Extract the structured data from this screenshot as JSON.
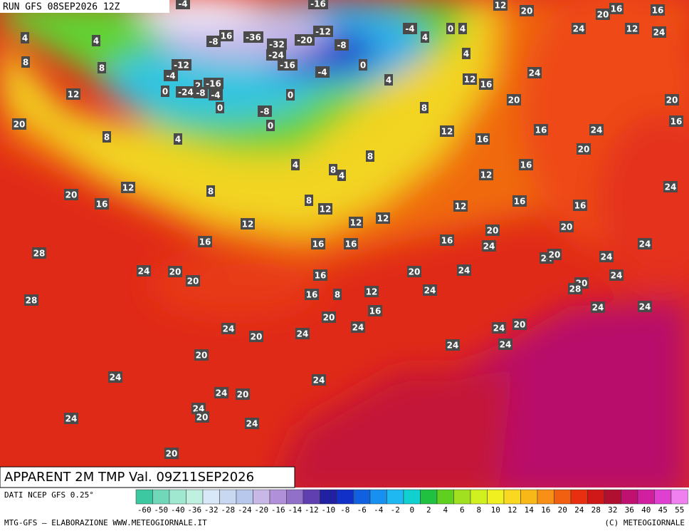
{
  "header": {
    "run": "RUN GFS 08SEP2026 12Z"
  },
  "title": "APPARENT 2M TMP Val. 09Z11SEP2026",
  "source": "DATI NCEP GFS 0.25°",
  "footer": {
    "left": "MTG-GFS — ELABORAZIONE WWW.METEOGIORNALE.IT",
    "right": "(C) METEOGIORNALE"
  },
  "scale": {
    "labels": [
      -60,
      -50,
      -40,
      -36,
      -32,
      -28,
      -24,
      -20,
      -16,
      -14,
      -12,
      -10,
      -8,
      -6,
      -4,
      -2,
      0,
      2,
      4,
      6,
      8,
      10,
      12,
      14,
      16,
      20,
      24,
      28,
      32,
      36,
      40,
      45,
      55
    ],
    "colors": [
      "#3cc8a0",
      "#70d8b8",
      "#a0e8d0",
      "#c0f0e0",
      "#d8e8f8",
      "#c8d8f0",
      "#b8c8ec",
      "#c8b8e8",
      "#b090d8",
      "#9070c8",
      "#6040b0",
      "#2020a0",
      "#1030c8",
      "#1060e0",
      "#1890f0",
      "#20b8f0",
      "#10d0d0",
      "#20c040",
      "#60d020",
      "#a0e020",
      "#d0f020",
      "#f0f020",
      "#f8d820",
      "#f8b818",
      "#f89018",
      "#f06010",
      "#e83010",
      "#d01818",
      "#b01030",
      "#c01070",
      "#d020a0",
      "#e040d0",
      "#f080f0"
    ]
  },
  "map_labels": [
    4,
    4,
    8,
    8,
    12,
    20,
    8,
    4,
    20,
    16,
    12,
    8,
    4,
    8,
    4,
    8,
    8,
    12,
    12,
    16,
    12,
    12,
    16,
    16,
    28,
    24,
    20,
    20,
    16,
    16,
    8,
    12,
    16,
    20,
    24,
    24,
    28,
    20,
    24,
    24,
    20,
    24,
    20,
    24,
    24,
    24,
    20,
    24,
    20,
    24,
    24,
    20,
    24,
    24,
    20,
    24,
    16,
    12,
    12,
    16,
    12,
    8,
    4,
    4,
    4,
    12,
    16,
    20,
    24,
    24,
    16,
    16,
    16,
    20,
    24,
    20,
    24,
    16,
    20,
    24,
    20,
    24,
    24,
    20,
    28,
    24,
    24,
    24,
    24,
    20,
    16,
    12,
    24,
    16,
    16,
    20,
    20,
    12,
    -4,
    -16,
    16,
    -8,
    -36,
    -32,
    -24,
    -20,
    -12,
    -16,
    -8,
    0,
    -4,
    -4,
    0,
    4,
    -12,
    -4,
    -16,
    2,
    -24,
    -8,
    -4,
    0,
    0,
    -8,
    0,
    0
  ]
}
